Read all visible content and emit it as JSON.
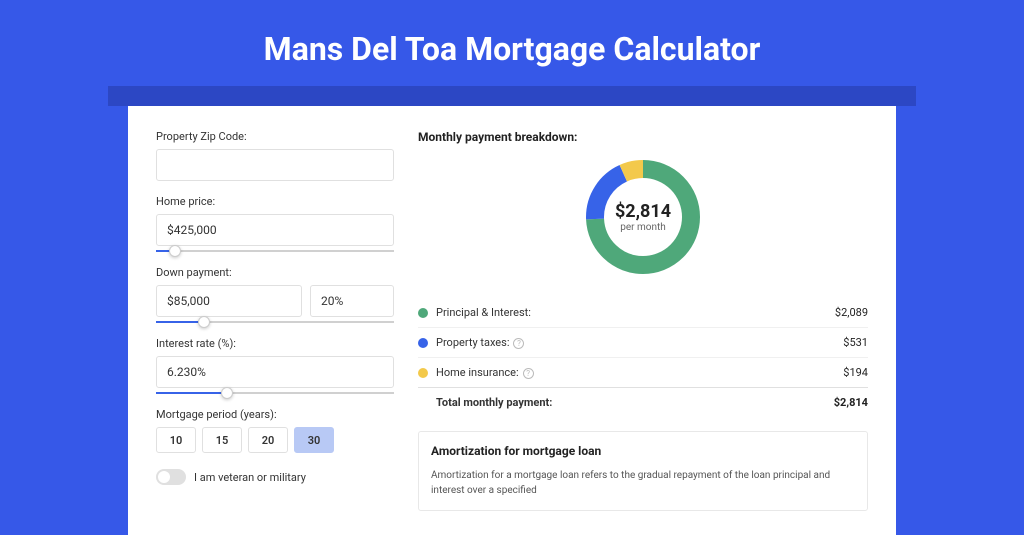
{
  "page": {
    "title": "Mans Del Toa Mortgage Calculator",
    "bg_color": "#3658e8",
    "shadow_color": "#2c47c4"
  },
  "form": {
    "zip_label": "Property Zip Code:",
    "zip_value": "",
    "home_price_label": "Home price:",
    "home_price_value": "$425,000",
    "home_price_slider": {
      "fill_pct": 8,
      "fill_color": "#3763e8"
    },
    "down_payment_label": "Down payment:",
    "down_payment_value": "$85,000",
    "down_payment_pct": "20%",
    "down_payment_slider": {
      "fill_pct": 20,
      "fill_color": "#3763e8"
    },
    "interest_label": "Interest rate (%):",
    "interest_value": "6.230%",
    "interest_slider": {
      "fill_pct": 30,
      "fill_color": "#3763e8"
    },
    "period_label": "Mortgage period (years):",
    "periods": [
      "10",
      "15",
      "20",
      "30"
    ],
    "period_active_index": 3,
    "veteran_label": "I am veteran or military",
    "veteran_on": false
  },
  "breakdown": {
    "title": "Monthly payment breakdown:",
    "center_value": "$2,814",
    "center_sub": "per month",
    "donut": {
      "stroke_width": 18,
      "bg": "#ffffff",
      "segments": [
        {
          "color": "#4fa87a",
          "pct": 74.2
        },
        {
          "color": "#3763e8",
          "pct": 18.9
        },
        {
          "color": "#f3c94b",
          "pct": 6.9
        }
      ]
    },
    "legend": [
      {
        "dot": "#4fa87a",
        "name": "Principal & Interest:",
        "info": false,
        "value": "$2,089"
      },
      {
        "dot": "#3763e8",
        "name": "Property taxes:",
        "info": true,
        "value": "$531"
      },
      {
        "dot": "#f3c94b",
        "name": "Home insurance:",
        "info": true,
        "value": "$194"
      }
    ],
    "total_label": "Total monthly payment:",
    "total_value": "$2,814"
  },
  "amort": {
    "title": "Amortization for mortgage loan",
    "text": "Amortization for a mortgage loan refers to the gradual repayment of the loan principal and interest over a specified"
  }
}
